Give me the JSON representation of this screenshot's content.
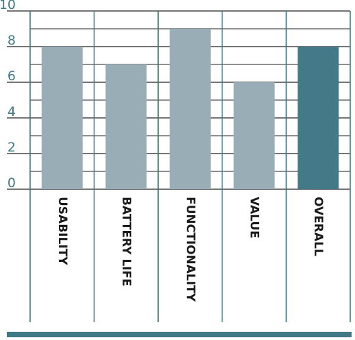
{
  "chart_data": {
    "type": "bar",
    "categories": [
      "USABILITY",
      "BATTERY LIFE",
      "FUNCTIONALITY",
      "VALUE",
      "OVERALL"
    ],
    "values": [
      8,
      7,
      9,
      6,
      8
    ],
    "highlight_category": "OVERALL",
    "ylim": [
      0,
      10
    ],
    "yticks": [
      "0",
      "2",
      "4",
      "6",
      "8",
      "10"
    ],
    "minor_gridlines_every": 1,
    "grid": true,
    "title": "",
    "xlabel": "",
    "ylabel": ""
  },
  "colors": {
    "bar": "#98adb6",
    "highlight_bar": "#447a87",
    "accent": "#3f7987",
    "grid": "#222222"
  }
}
